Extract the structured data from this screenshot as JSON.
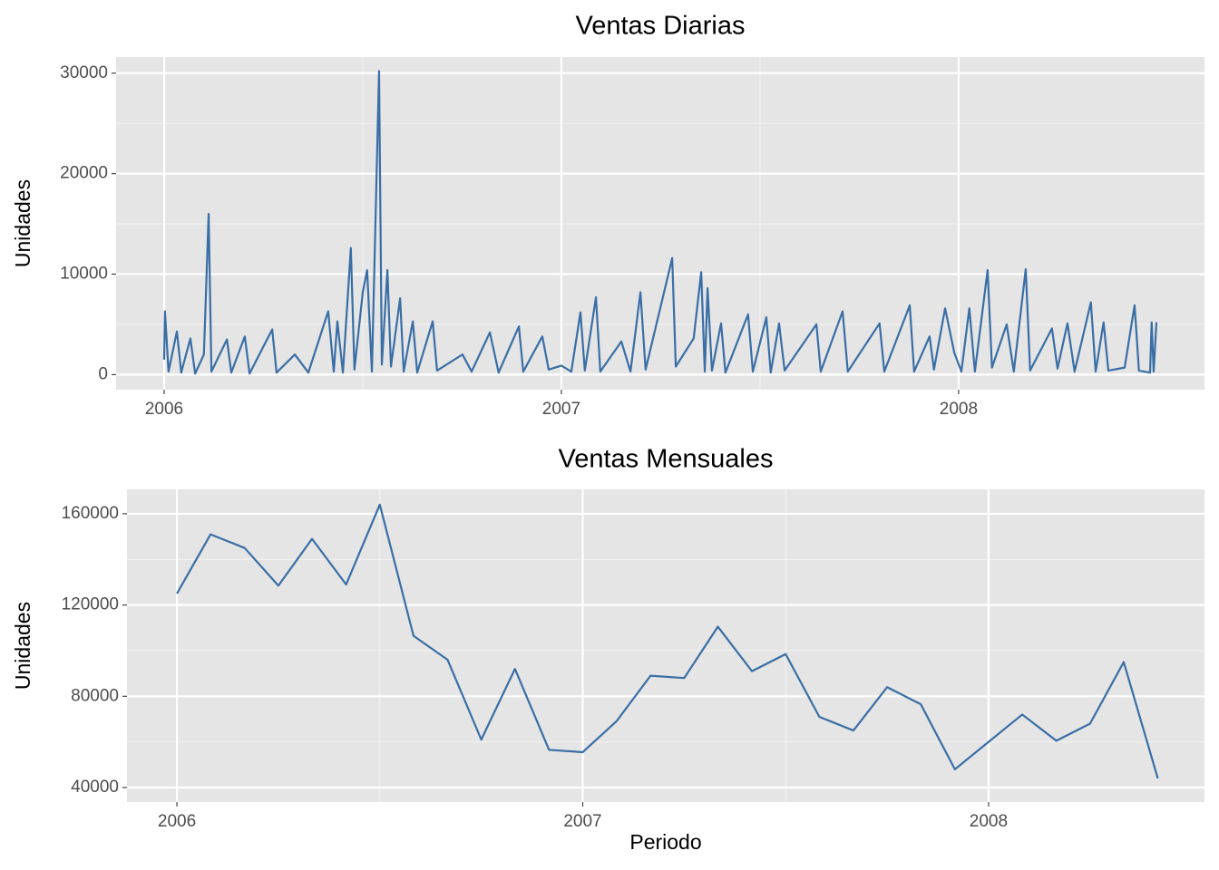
{
  "chart_data": [
    {
      "type": "line",
      "title": "Ventas Diarias",
      "y_label": "Unidades",
      "color": "#3a6ea5",
      "grid": true,
      "minor_grid": true,
      "x": [
        2006.0,
        2006.002,
        2006.011,
        2006.032,
        2006.043,
        2006.066,
        2006.078,
        2006.1,
        2006.112,
        2006.119,
        2006.158,
        2006.169,
        2006.203,
        2006.215,
        2006.272,
        2006.283,
        2006.329,
        2006.363,
        2006.413,
        2006.427,
        2006.436,
        2006.45,
        2006.47,
        2006.479,
        2006.5,
        2006.511,
        2006.523,
        2006.541,
        2006.548,
        2006.562,
        2006.571,
        2006.594,
        2006.603,
        2006.626,
        2006.637,
        2006.676,
        2006.687,
        2006.751,
        2006.774,
        2006.82,
        2006.842,
        2006.893,
        2006.904,
        2006.952,
        2006.968,
        2007.0,
        2007.025,
        2007.048,
        2007.059,
        2007.087,
        2007.098,
        2007.151,
        2007.174,
        2007.199,
        2007.212,
        2007.279,
        2007.288,
        2007.333,
        2007.352,
        2007.361,
        2007.368,
        2007.379,
        2007.402,
        2007.413,
        2007.47,
        2007.482,
        2007.516,
        2007.527,
        2007.548,
        2007.562,
        2007.642,
        2007.653,
        2007.708,
        2007.721,
        2007.801,
        2007.813,
        2007.877,
        2007.888,
        2007.927,
        2007.938,
        2007.966,
        2007.989,
        2008.007,
        2008.027,
        2008.041,
        2008.073,
        2008.084,
        2008.121,
        2008.139,
        2008.169,
        2008.18,
        2008.235,
        2008.249,
        2008.274,
        2008.292,
        2008.333,
        2008.345,
        2008.365,
        2008.377,
        2008.418,
        2008.443,
        2008.454,
        2008.482,
        2008.486,
        2008.491,
        2008.498
      ],
      "values": [
        1500,
        6300,
        300,
        4300,
        200,
        3600,
        100,
        2000,
        16000,
        300,
        3500,
        200,
        3800,
        100,
        4500,
        200,
        2000,
        200,
        6300,
        300,
        5300,
        200,
        12600,
        500,
        8200,
        10400,
        300,
        30200,
        1000,
        10400,
        800,
        7600,
        300,
        5300,
        200,
        5300,
        400,
        2000,
        300,
        4200,
        200,
        4800,
        300,
        3800,
        500,
        900,
        300,
        6200,
        400,
        7700,
        300,
        3300,
        300,
        8200,
        500,
        11600,
        800,
        3600,
        10200,
        300,
        8600,
        400,
        5100,
        200,
        6000,
        300,
        5700,
        200,
        5100,
        400,
        5000,
        300,
        6300,
        300,
        5100,
        300,
        6900,
        300,
        3800,
        500,
        6600,
        2200,
        300,
        6600,
        300,
        10400,
        700,
        5000,
        300,
        10500,
        400,
        4600,
        600,
        5100,
        300,
        7200,
        300,
        5200,
        400,
        700,
        6900,
        400,
        200,
        5200,
        300,
        5200
      ],
      "xlim": [
        2005.879,
        2008.619
      ],
      "xticks": [
        2006,
        2007,
        2008
      ],
      "ylim": [
        -1500,
        31600
      ],
      "yticks": [
        0,
        10000,
        20000,
        30000
      ]
    },
    {
      "type": "line",
      "title": "Ventas Mensuales",
      "x_label": "Periodo",
      "y_label": "Unidades",
      "color": "#3a6ea5",
      "grid": true,
      "minor_grid": true,
      "x": [
        2006.0,
        2006.083,
        2006.167,
        2006.25,
        2006.333,
        2006.417,
        2006.5,
        2006.583,
        2006.667,
        2006.75,
        2006.833,
        2006.917,
        2007.0,
        2007.083,
        2007.167,
        2007.25,
        2007.333,
        2007.417,
        2007.5,
        2007.583,
        2007.667,
        2007.75,
        2007.833,
        2007.917,
        2008.0,
        2008.083,
        2008.167,
        2008.25,
        2008.333,
        2008.417
      ],
      "values": [
        125000,
        151000,
        145000,
        128500,
        149000,
        129000,
        164000,
        106500,
        96000,
        61000,
        92000,
        56500,
        55500,
        69000,
        89000,
        88000,
        110500,
        91000,
        98500,
        71000,
        65000,
        84000,
        76500,
        48000,
        60000,
        72000,
        60500,
        68000,
        95000,
        44000
      ],
      "xlim": [
        2005.877,
        2008.532
      ],
      "xticks": [
        2006,
        2007,
        2008
      ],
      "ylim": [
        33640,
        170700
      ],
      "yticks": [
        40000,
        80000,
        120000,
        160000
      ]
    }
  ]
}
